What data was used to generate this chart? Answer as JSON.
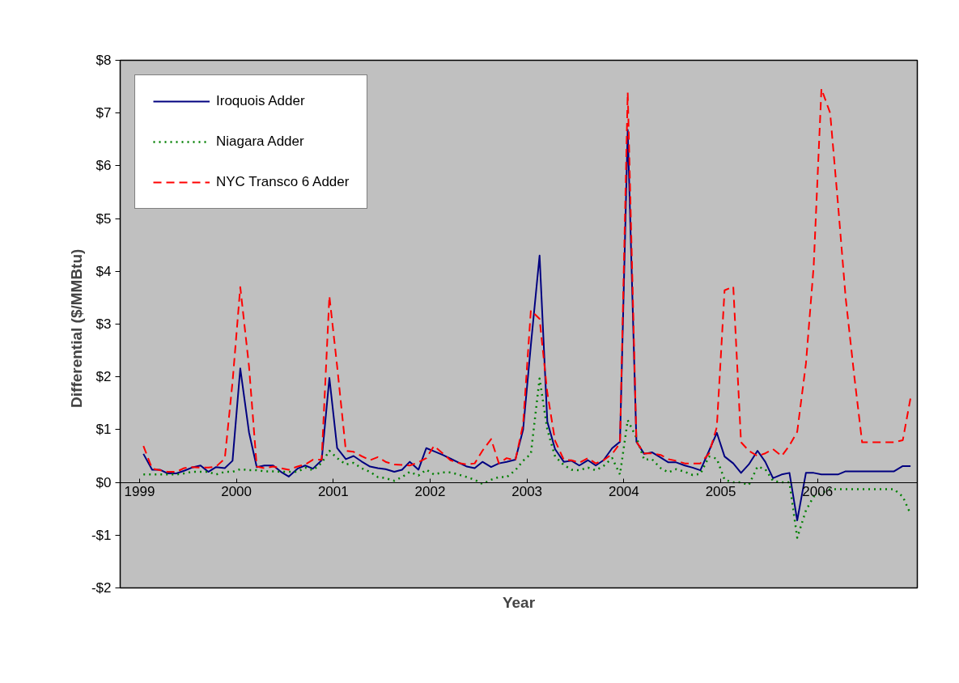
{
  "chart_data": {
    "type": "line",
    "xlabel": "Year",
    "ylabel": "Differential   ($/MMBtu)",
    "x": [
      1999.04,
      1999.13,
      1999.21,
      1999.29,
      1999.38,
      1999.46,
      1999.54,
      1999.63,
      1999.71,
      1999.79,
      1999.88,
      1999.96,
      2000.04,
      2000.13,
      2000.21,
      2000.29,
      2000.38,
      2000.46,
      2000.54,
      2000.63,
      2000.71,
      2000.79,
      2000.88,
      2000.96,
      2001.04,
      2001.13,
      2001.21,
      2001.29,
      2001.38,
      2001.46,
      2001.54,
      2001.63,
      2001.71,
      2001.79,
      2001.88,
      2001.96,
      2002.04,
      2002.13,
      2002.21,
      2002.29,
      2002.38,
      2002.46,
      2002.54,
      2002.63,
      2002.71,
      2002.79,
      2002.88,
      2002.96,
      2003.04,
      2003.13,
      2003.21,
      2003.29,
      2003.38,
      2003.46,
      2003.54,
      2003.63,
      2003.71,
      2003.79,
      2003.88,
      2003.96,
      2004.04,
      2004.13,
      2004.21,
      2004.29,
      2004.38,
      2004.46,
      2004.54,
      2004.63,
      2004.71,
      2004.79,
      2004.88,
      2004.96,
      2005.04,
      2005.13,
      2005.21,
      2005.29,
      2005.38,
      2005.46,
      2005.54,
      2005.63,
      2005.71,
      2005.79,
      2005.88,
      2005.96,
      2006.04,
      2006.13,
      2006.21,
      2006.29,
      2006.38,
      2006.46,
      2006.54,
      2006.63,
      2006.71,
      2006.79,
      2006.88,
      2006.96
    ],
    "series": [
      {
        "name": "Iroquois Adder",
        "color": "#000080",
        "line_style": "solid",
        "values": [
          0.54,
          0.24,
          0.24,
          0.17,
          0.17,
          0.22,
          0.28,
          0.32,
          0.2,
          0.29,
          0.27,
          0.41,
          2.16,
          0.95,
          0.29,
          0.32,
          0.32,
          0.2,
          0.11,
          0.26,
          0.32,
          0.26,
          0.42,
          1.98,
          0.65,
          0.44,
          0.5,
          0.4,
          0.3,
          0.27,
          0.25,
          0.2,
          0.24,
          0.39,
          0.24,
          0.65,
          0.59,
          0.52,
          0.45,
          0.38,
          0.3,
          0.27,
          0.39,
          0.29,
          0.36,
          0.39,
          0.43,
          1.0,
          2.6,
          4.3,
          1.15,
          0.63,
          0.39,
          0.41,
          0.32,
          0.42,
          0.32,
          0.42,
          0.65,
          0.77,
          6.68,
          0.77,
          0.54,
          0.57,
          0.47,
          0.38,
          0.38,
          0.32,
          0.28,
          0.23,
          0.6,
          0.94,
          0.49,
          0.36,
          0.18,
          0.34,
          0.6,
          0.39,
          0.08,
          0.15,
          0.18,
          -0.72,
          0.18,
          0.18,
          0.15,
          0.15,
          0.15,
          0.21,
          0.21,
          0.21,
          0.21,
          0.21,
          0.21,
          0.21,
          0.31,
          0.31
        ]
      },
      {
        "name": "Niagara Adder",
        "color": "#008000",
        "line_style": "dotted",
        "values": [
          0.15,
          0.15,
          0.15,
          0.15,
          0.15,
          0.17,
          0.2,
          0.2,
          0.2,
          0.15,
          0.2,
          0.2,
          0.25,
          0.23,
          0.23,
          0.21,
          0.21,
          0.2,
          0.2,
          0.2,
          0.28,
          0.23,
          0.37,
          0.6,
          0.46,
          0.34,
          0.37,
          0.27,
          0.2,
          0.1,
          0.08,
          0.03,
          0.1,
          0.2,
          0.13,
          0.24,
          0.15,
          0.19,
          0.19,
          0.15,
          0.1,
          0.05,
          -0.03,
          0.05,
          0.1,
          0.1,
          0.23,
          0.41,
          0.54,
          1.97,
          1.0,
          0.49,
          0.33,
          0.24,
          0.23,
          0.28,
          0.23,
          0.31,
          0.46,
          0.15,
          1.18,
          0.85,
          0.43,
          0.44,
          0.27,
          0.19,
          0.25,
          0.2,
          0.14,
          0.16,
          0.49,
          0.45,
          0.05,
          0.0,
          0.0,
          -0.05,
          0.3,
          0.25,
          0.03,
          0.0,
          0.0,
          -1.05,
          -0.53,
          -0.27,
          -0.2,
          -0.13,
          -0.13,
          -0.13,
          -0.13,
          -0.13,
          -0.13,
          -0.13,
          -0.13,
          -0.13,
          -0.27,
          -0.6
        ]
      },
      {
        "name": "NYC Transco 6 Adder",
        "color": "#ff0000",
        "line_style": "dashed",
        "values": [
          0.69,
          0.26,
          0.23,
          0.2,
          0.2,
          0.27,
          0.29,
          0.28,
          0.28,
          0.3,
          0.45,
          1.9,
          3.7,
          2.2,
          0.3,
          0.27,
          0.3,
          0.27,
          0.24,
          0.3,
          0.34,
          0.43,
          0.43,
          3.53,
          2.2,
          0.6,
          0.58,
          0.5,
          0.42,
          0.48,
          0.39,
          0.34,
          0.33,
          0.32,
          0.38,
          0.46,
          0.69,
          0.55,
          0.42,
          0.37,
          0.34,
          0.36,
          0.6,
          0.82,
          0.36,
          0.46,
          0.42,
          1.1,
          3.26,
          3.1,
          1.7,
          0.79,
          0.43,
          0.42,
          0.37,
          0.46,
          0.36,
          0.42,
          0.54,
          0.74,
          7.39,
          0.77,
          0.55,
          0.55,
          0.52,
          0.44,
          0.41,
          0.36,
          0.36,
          0.36,
          0.55,
          1.05,
          3.64,
          3.71,
          0.76,
          0.6,
          0.5,
          0.55,
          0.63,
          0.5,
          0.7,
          0.96,
          2.25,
          4.1,
          7.46,
          7.0,
          5.3,
          3.5,
          2.0,
          0.76,
          0.76,
          0.76,
          0.76,
          0.76,
          0.8,
          1.6
        ]
      }
    ],
    "xlim": [
      1998.8,
      2007.03
    ],
    "xticks": [
      1999,
      2000,
      2001,
      2002,
      2003,
      2004,
      2005,
      2006
    ],
    "ylim": [
      -2,
      8
    ],
    "yticks": [
      {
        "value": -2,
        "label": "-$2"
      },
      {
        "value": -1,
        "label": "-$1"
      },
      {
        "value": 0,
        "label": "$0"
      },
      {
        "value": 1,
        "label": "$1"
      },
      {
        "value": 2,
        "label": "$2"
      },
      {
        "value": 3,
        "label": "$3"
      },
      {
        "value": 4,
        "label": "$4"
      },
      {
        "value": 5,
        "label": "$5"
      },
      {
        "value": 6,
        "label": "$6"
      },
      {
        "value": 7,
        "label": "$7"
      },
      {
        "value": 8,
        "label": "$8"
      }
    ],
    "grid": false,
    "legend": "top left",
    "marker": "none"
  }
}
